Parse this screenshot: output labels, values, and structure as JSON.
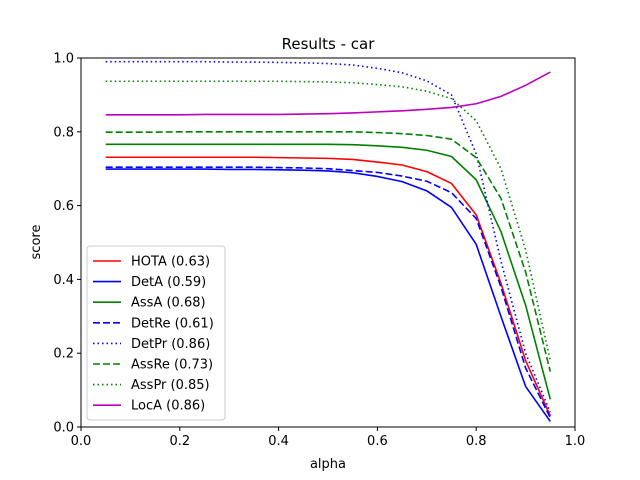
{
  "chart_data": {
    "type": "line",
    "title": "Results - car",
    "xlabel": "alpha",
    "ylabel": "score",
    "xlim": [
      0.0,
      1.0
    ],
    "ylim": [
      0.0,
      1.0
    ],
    "xticks": [
      "0.0",
      "0.2",
      "0.4",
      "0.6",
      "0.8",
      "1.0"
    ],
    "yticks": [
      "0.0",
      "0.2",
      "0.4",
      "0.6",
      "0.8",
      "1.0"
    ],
    "grid": false,
    "legend_position": "lower-left",
    "x": [
      0.05,
      0.1,
      0.15,
      0.2,
      0.25,
      0.3,
      0.35,
      0.4,
      0.45,
      0.5,
      0.55,
      0.6,
      0.65,
      0.7,
      0.75,
      0.8,
      0.85,
      0.9,
      0.95
    ],
    "series": [
      {
        "name": "HOTA (0.63)",
        "color": "#ff0000",
        "dash": "solid",
        "values": [
          0.731,
          0.731,
          0.731,
          0.731,
          0.731,
          0.731,
          0.731,
          0.73,
          0.729,
          0.728,
          0.725,
          0.718,
          0.71,
          0.692,
          0.66,
          0.575,
          0.39,
          0.18,
          0.03
        ]
      },
      {
        "name": "DetA (0.59)",
        "color": "#0000ff",
        "dash": "solid",
        "values": [
          0.699,
          0.699,
          0.699,
          0.699,
          0.699,
          0.698,
          0.698,
          0.697,
          0.696,
          0.694,
          0.689,
          0.679,
          0.665,
          0.64,
          0.595,
          0.495,
          0.3,
          0.11,
          0.015
        ]
      },
      {
        "name": "AssA (0.68)",
        "color": "#008000",
        "dash": "solid",
        "values": [
          0.766,
          0.766,
          0.766,
          0.766,
          0.766,
          0.766,
          0.766,
          0.766,
          0.766,
          0.766,
          0.765,
          0.762,
          0.758,
          0.75,
          0.733,
          0.67,
          0.53,
          0.33,
          0.075
        ]
      },
      {
        "name": "DetRe (0.61)",
        "color": "#0000ff",
        "dash": "dashed",
        "values": [
          0.704,
          0.704,
          0.704,
          0.704,
          0.704,
          0.704,
          0.704,
          0.703,
          0.702,
          0.7,
          0.695,
          0.69,
          0.68,
          0.666,
          0.635,
          0.565,
          0.38,
          0.16,
          0.025
        ]
      },
      {
        "name": "DetPr (0.86)",
        "color": "#0000ff",
        "dash": "dotted",
        "values": [
          0.99,
          0.99,
          0.99,
          0.99,
          0.99,
          0.989,
          0.989,
          0.988,
          0.987,
          0.985,
          0.981,
          0.972,
          0.96,
          0.938,
          0.9,
          0.74,
          0.45,
          0.2,
          0.04
        ]
      },
      {
        "name": "AssRe (0.73)",
        "color": "#008000",
        "dash": "dashed",
        "values": [
          0.799,
          0.799,
          0.799,
          0.8,
          0.8,
          0.8,
          0.8,
          0.8,
          0.8,
          0.8,
          0.8,
          0.798,
          0.795,
          0.79,
          0.78,
          0.73,
          0.62,
          0.42,
          0.15
        ]
      },
      {
        "name": "AssPr (0.85)",
        "color": "#008000",
        "dash": "dotted",
        "values": [
          0.937,
          0.937,
          0.937,
          0.937,
          0.937,
          0.937,
          0.937,
          0.937,
          0.936,
          0.935,
          0.933,
          0.928,
          0.922,
          0.91,
          0.89,
          0.83,
          0.7,
          0.48,
          0.18
        ]
      },
      {
        "name": "LocA (0.86)",
        "color": "#bf00bf",
        "dash": "solid",
        "values": [
          0.846,
          0.846,
          0.846,
          0.846,
          0.847,
          0.847,
          0.847,
          0.847,
          0.848,
          0.849,
          0.851,
          0.854,
          0.857,
          0.861,
          0.866,
          0.876,
          0.896,
          0.926,
          0.962
        ]
      }
    ]
  }
}
